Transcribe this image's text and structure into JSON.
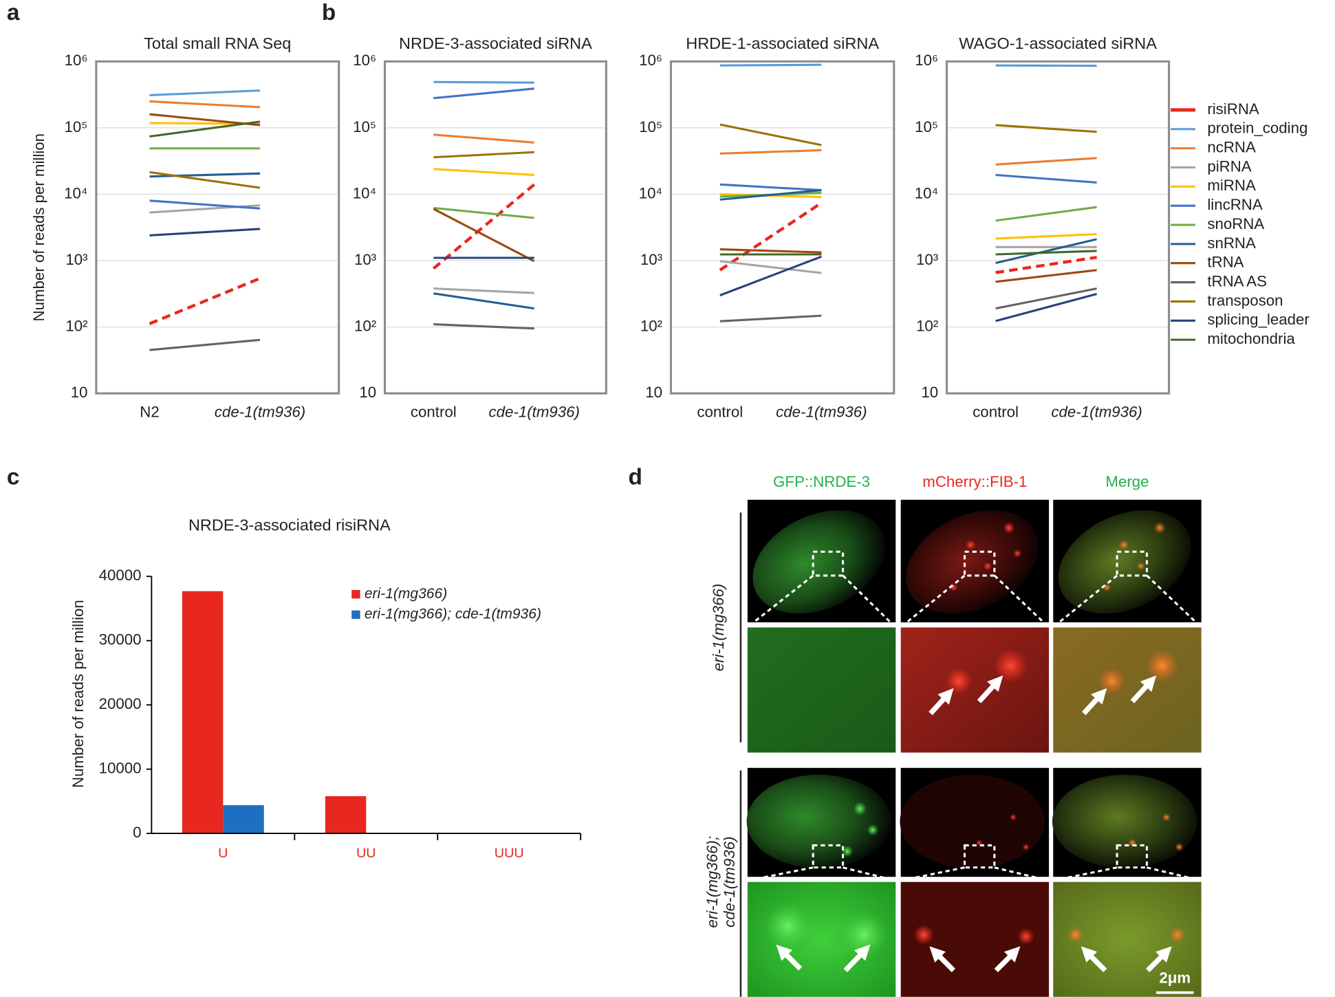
{
  "panel_labels": [
    "a",
    "b",
    "c",
    "d"
  ],
  "chart_data": [
    {
      "type": "line",
      "title": "Total small RNA Seq",
      "y_label": "Number of reads per million",
      "log_y": true,
      "grid": true,
      "categories": [
        "N2",
        "cde-1(tm936)"
      ],
      "ylim": [
        10,
        1000000
      ],
      "yticks": [
        10,
        {
          "value": 100,
          "label": "10²"
        },
        {
          "value": 1000,
          "label": "10³"
        },
        {
          "value": 10000,
          "label": "10⁴"
        },
        {
          "value": 100000,
          "label": "10⁵"
        },
        {
          "value": 1000000,
          "label": "10⁶"
        }
      ],
      "series": [
        {
          "color": "#e8281e",
          "dash": true,
          "values": [
            112,
            540
          ]
        },
        {
          "color": "#5b9bd5",
          "values": [
            310000,
            365000
          ]
        },
        {
          "color": "#ed7d31",
          "values": [
            250000,
            205000
          ]
        },
        {
          "color": "#a5a5a5",
          "values": [
            5300,
            6800
          ]
        },
        {
          "color": "#ffc000",
          "values": [
            118000,
            115000
          ]
        },
        {
          "color": "#4472c4",
          "values": [
            8000,
            6100
          ]
        },
        {
          "color": "#70ad47",
          "values": [
            49000,
            49000
          ]
        },
        {
          "color": "#255e91",
          "values": [
            18500,
            20500
          ]
        },
        {
          "color": "#9e480e",
          "values": [
            160000,
            110000
          ]
        },
        {
          "color": "#636363",
          "values": [
            45,
            64
          ]
        },
        {
          "color": "#997300",
          "values": [
            21500,
            12500
          ]
        },
        {
          "color": "#264478",
          "values": [
            2400,
            3000
          ]
        },
        {
          "color": "#43682b",
          "values": [
            74000,
            124000
          ]
        }
      ]
    },
    {
      "type": "line",
      "title": "NRDE-3-associated siRNA",
      "log_y": true,
      "grid": true,
      "categories": [
        "control",
        "cde-1(tm936)"
      ],
      "ylim": [
        10,
        1000000
      ],
      "yticks": [
        10,
        {
          "value": 100,
          "label": "10²"
        },
        {
          "value": 1000,
          "label": "10³"
        },
        {
          "value": 10000,
          "label": "10⁴"
        },
        {
          "value": 100000,
          "label": "10⁵"
        },
        {
          "value": 1000000,
          "label": "10⁶"
        }
      ],
      "series": [
        {
          "color": "#e8281e",
          "dash": true,
          "values": [
            760,
            14000
          ]
        },
        {
          "color": "#5b9bd5",
          "values": [
            490000,
            480000
          ]
        },
        {
          "color": "#ed7d31",
          "values": [
            79000,
            60000
          ]
        },
        {
          "color": "#a5a5a5",
          "values": [
            380,
            325
          ]
        },
        {
          "color": "#ffc000",
          "values": [
            24000,
            19500
          ]
        },
        {
          "color": "#4472c4",
          "values": [
            280000,
            390000
          ]
        },
        {
          "color": "#70ad47",
          "values": [
            6200,
            4400
          ]
        },
        {
          "color": "#255e91",
          "values": [
            320,
            190
          ]
        },
        {
          "color": "#9e480e",
          "values": [
            6000,
            980
          ]
        },
        {
          "color": "#636363",
          "values": [
            110,
            95
          ]
        },
        {
          "color": "#997300",
          "values": [
            36000,
            43000
          ]
        },
        {
          "color": "#264478",
          "values": [
            1100,
            1100
          ]
        },
        {
          "color": "#43682b",
          "values": [
            null,
            null
          ]
        }
      ]
    },
    {
      "type": "line",
      "title": "HRDE-1-associated siRNA",
      "log_y": true,
      "grid": true,
      "categories": [
        "control",
        "cde-1(tm936)"
      ],
      "ylim": [
        10,
        1000000
      ],
      "yticks": [
        10,
        {
          "value": 100,
          "label": "10²"
        },
        {
          "value": 1000,
          "label": "10³"
        },
        {
          "value": 10000,
          "label": "10⁴"
        },
        {
          "value": 100000,
          "label": "10⁵"
        },
        {
          "value": 1000000,
          "label": "10⁶"
        }
      ],
      "series": [
        {
          "color": "#e8281e",
          "dash": true,
          "values": [
            720,
            7400
          ]
        },
        {
          "color": "#5b9bd5",
          "values": [
            870000,
            890000
          ]
        },
        {
          "color": "#ed7d31",
          "values": [
            41000,
            46000
          ]
        },
        {
          "color": "#a5a5a5",
          "values": [
            980,
            650
          ]
        },
        {
          "color": "#ffc000",
          "values": [
            10000,
            9100
          ]
        },
        {
          "color": "#4472c4",
          "values": [
            14000,
            11500
          ]
        },
        {
          "color": "#70ad47",
          "values": [
            9200,
            10500
          ]
        },
        {
          "color": "#255e91",
          "values": [
            8300,
            11500
          ]
        },
        {
          "color": "#9e480e",
          "values": [
            1480,
            1330
          ]
        },
        {
          "color": "#636363",
          "values": [
            122,
            148
          ]
        },
        {
          "color": "#997300",
          "values": [
            112000,
            55000
          ]
        },
        {
          "color": "#264478",
          "values": [
            300,
            1150
          ]
        },
        {
          "color": "#43682b",
          "values": [
            1240,
            1240
          ]
        }
      ]
    },
    {
      "type": "line",
      "title": "WAGO-1-associated siRNA",
      "log_y": true,
      "grid": true,
      "categories": [
        "control",
        "cde-1(tm936)"
      ],
      "ylim": [
        10,
        1000000
      ],
      "yticks": [
        10,
        {
          "value": 100,
          "label": "10²"
        },
        {
          "value": 1000,
          "label": "10³"
        },
        {
          "value": 10000,
          "label": "10⁴"
        },
        {
          "value": 100000,
          "label": "10⁵"
        },
        {
          "value": 1000000,
          "label": "10⁶"
        }
      ],
      "legend": "right",
      "series": [
        {
          "name": "risiRNA",
          "color": "#e8281e",
          "dash": true,
          "values": [
            660,
            1120
          ]
        },
        {
          "name": "protein_coding",
          "color": "#5b9bd5",
          "values": [
            870000,
            860000
          ]
        },
        {
          "name": "ncRNA",
          "color": "#ed7d31",
          "values": [
            28000,
            35000
          ]
        },
        {
          "name": "piRNA",
          "color": "#a5a5a5",
          "values": [
            1600,
            1600
          ]
        },
        {
          "name": "miRNA",
          "color": "#ffc000",
          "values": [
            2150,
            2500
          ]
        },
        {
          "name": "lincRNA",
          "color": "#4472c4",
          "values": [
            19500,
            15000
          ]
        },
        {
          "name": "snoRNA",
          "color": "#70ad47",
          "values": [
            4000,
            6400
          ]
        },
        {
          "name": "snRNA",
          "color": "#255e91",
          "values": [
            920,
            2100
          ]
        },
        {
          "name": "tRNA",
          "color": "#9e480e",
          "values": [
            480,
            720
          ]
        },
        {
          "name": "tRNA AS",
          "color": "#636363",
          "values": [
            190,
            380
          ]
        },
        {
          "name": "transposon",
          "color": "#997300",
          "values": [
            110000,
            87000
          ]
        },
        {
          "name": "splicing_leader",
          "color": "#264478",
          "values": [
            123,
            315
          ]
        },
        {
          "name": "mitochondria",
          "color": "#43682b",
          "values": [
            1240,
            1400
          ]
        }
      ]
    },
    {
      "type": "bar",
      "title": "NRDE-3-associated risiRNA",
      "y_label": "Number of reads per million",
      "categories": [
        "U",
        "UU",
        "UUU"
      ],
      "category_color": "#e8281e",
      "ylim": [
        0,
        40000
      ],
      "yticks": [
        0,
        10000,
        20000,
        30000,
        40000
      ],
      "series": [
        {
          "name": "eri-1(mg366)",
          "color": "#e8281e",
          "values": [
            37700,
            5800,
            0
          ]
        },
        {
          "name": "eri-1(mg366); cde-1(tm936)",
          "color": "#1f6fc0",
          "values": [
            4400,
            0,
            0
          ]
        }
      ]
    }
  ],
  "image_panel": {
    "columns": [
      "GFP::NRDE-3",
      "mCherry::FIB-1",
      "Merge"
    ],
    "column_colors": [
      "#22b24c",
      "#e8281e",
      "#22b24c"
    ],
    "rows": [
      [
        "eri-1(mg366)"
      ],
      [
        "eri-1(mg366);",
        "cde-1(tm936)"
      ]
    ],
    "scale_bar": "2μm"
  }
}
